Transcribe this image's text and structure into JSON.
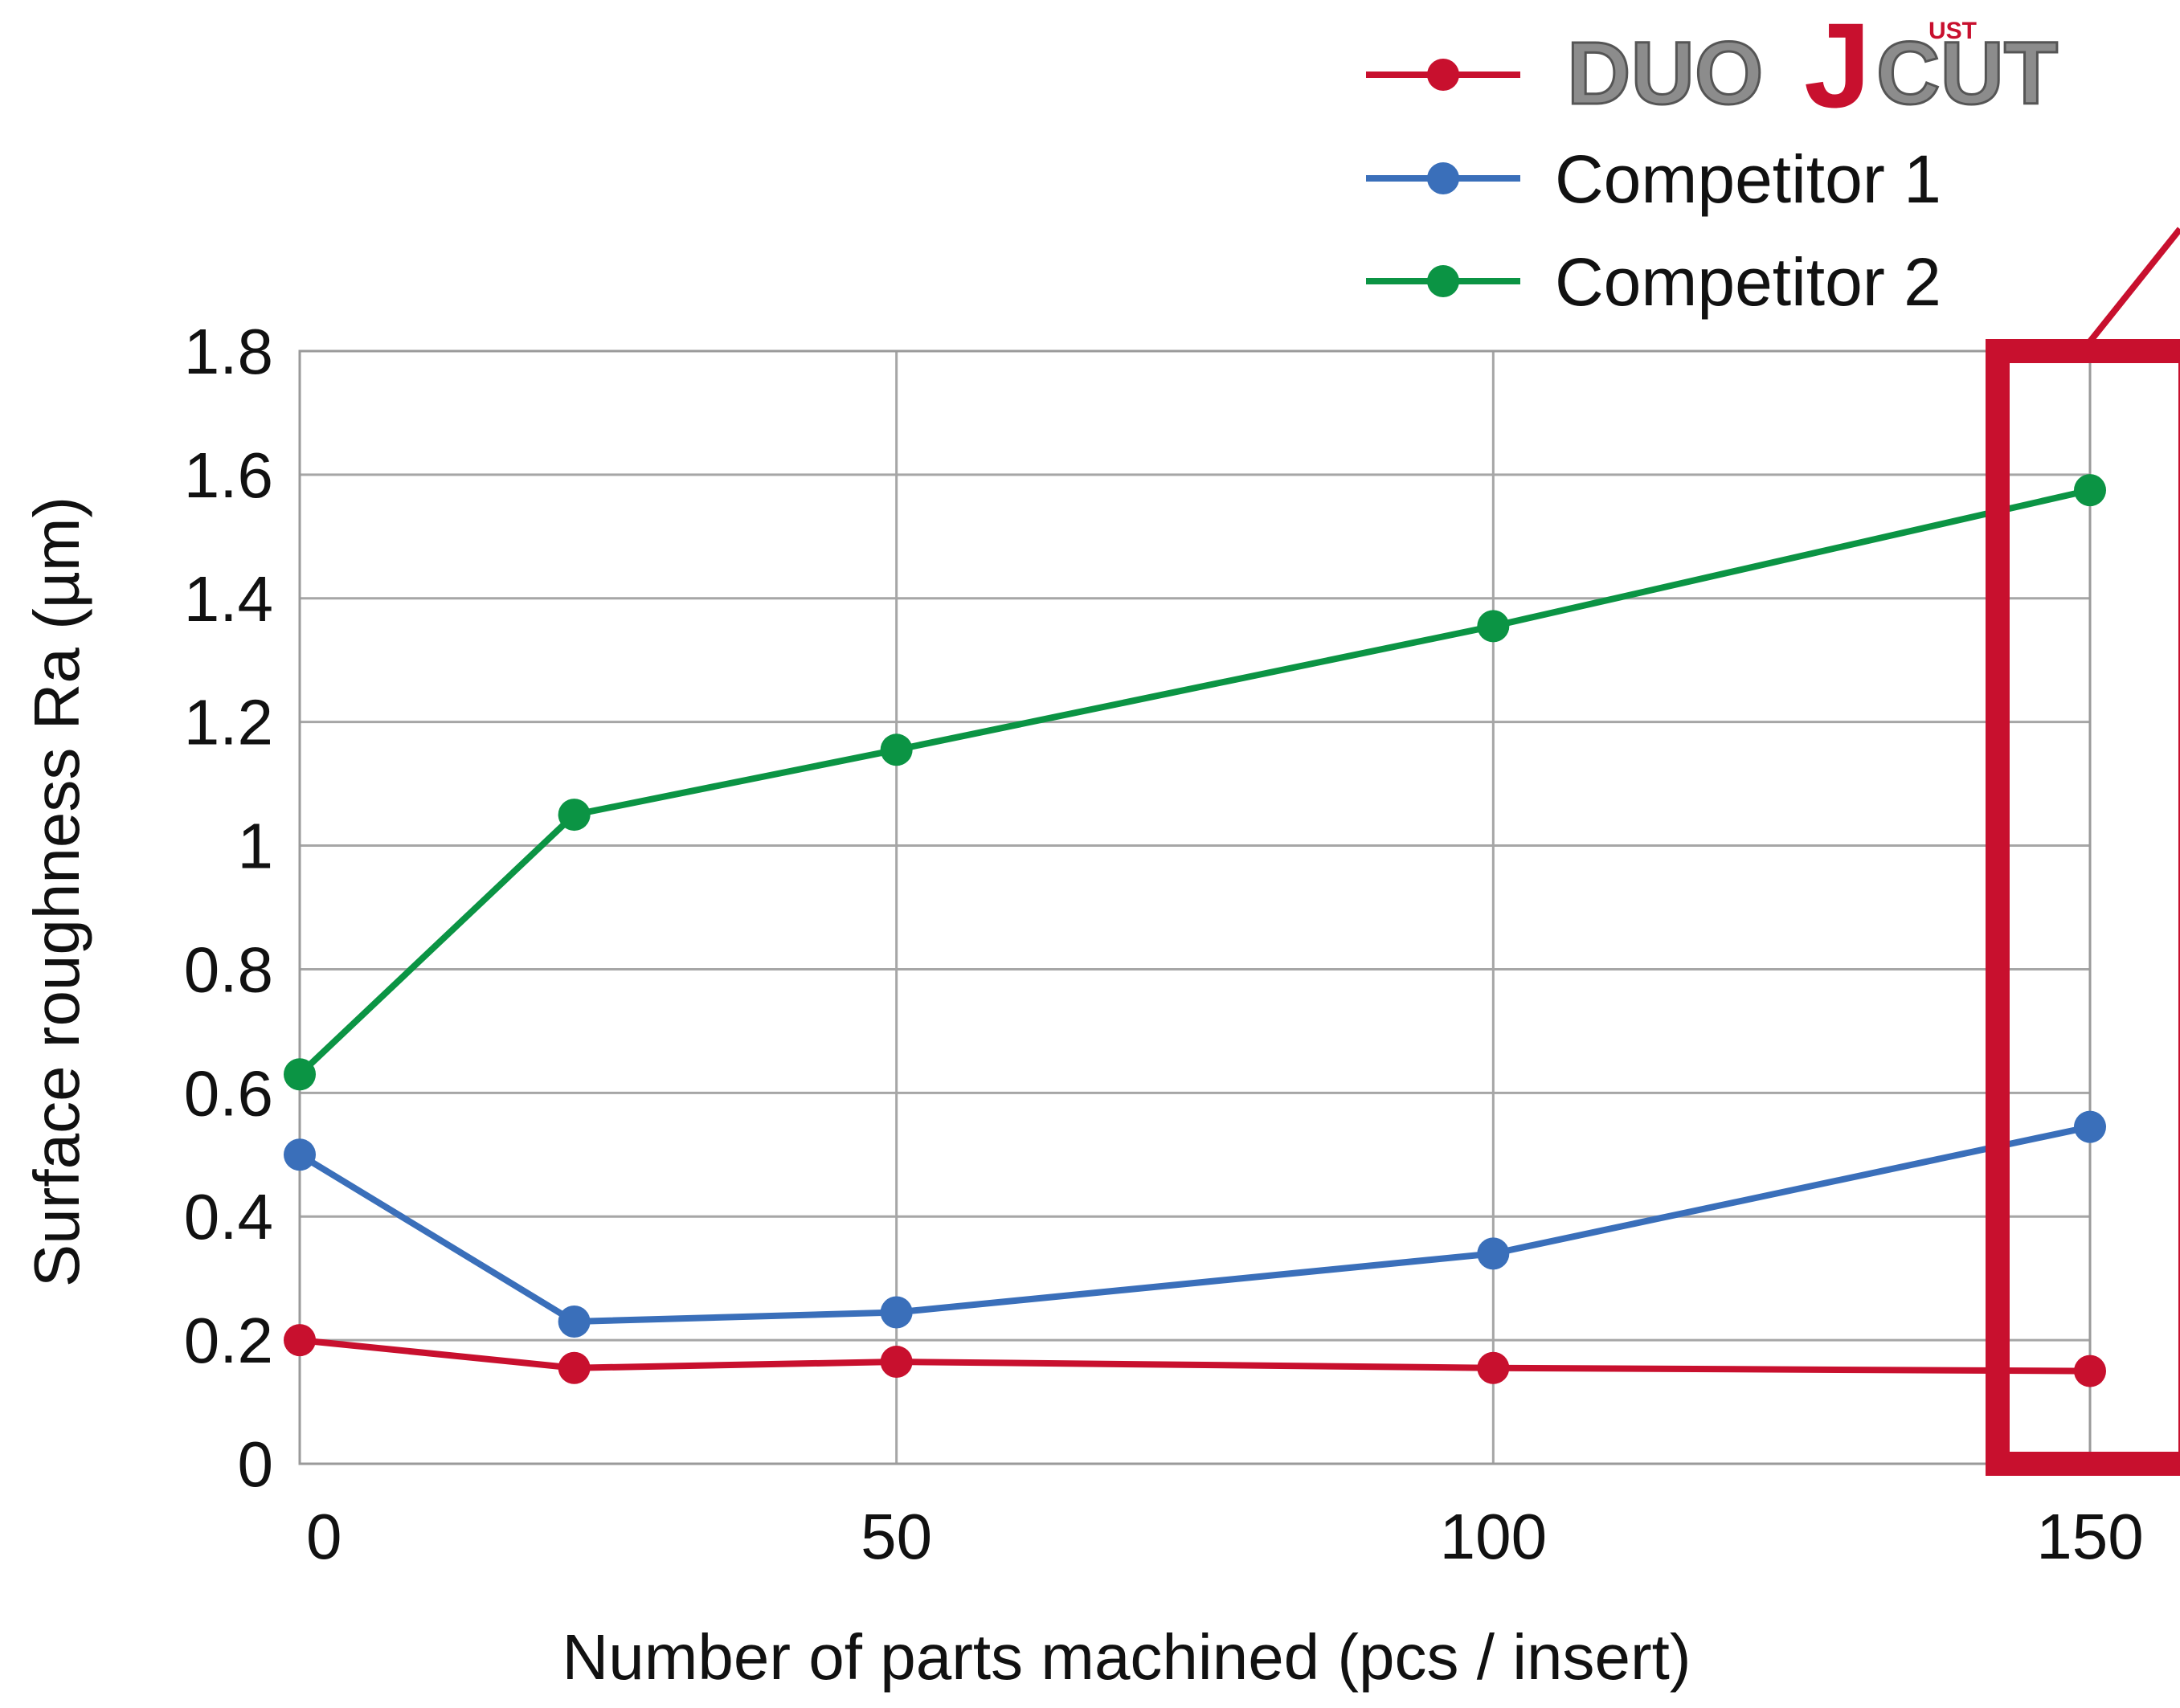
{
  "chart_data": {
    "type": "line",
    "title": "",
    "xlabel": "Number of parts machined (pcs / insert)",
    "ylabel": "Surface roughness Ra (µm)",
    "x": [
      0,
      23,
      50,
      100,
      150
    ],
    "x_tick_labels": [
      "0",
      "50",
      "100",
      "150"
    ],
    "x_ticks": [
      0,
      50,
      100,
      150
    ],
    "xlim": [
      0,
      150
    ],
    "ylim": [
      0,
      1.8
    ],
    "y_ticks": [
      0,
      0.2,
      0.4,
      0.6,
      0.8,
      1,
      1.2,
      1.4,
      1.6,
      1.8
    ],
    "y_tick_labels": [
      "0",
      "0.2",
      "0.4",
      "0.6",
      "0.8",
      "1",
      "1.2",
      "1.4",
      "1.6",
      "1.8"
    ],
    "grid": true,
    "legend_position": "top-right",
    "series": [
      {
        "name": "DUOJUSTCUT",
        "logo_parts": {
          "left": "DUO",
          "mark": "J",
          "sup": "UST",
          "right": "CUT"
        },
        "color": "#c8102e",
        "values": [
          0.2,
          0.155,
          0.165,
          0.155,
          0.15
        ]
      },
      {
        "name": "Competitor 1",
        "color": "#3a6fba",
        "values": [
          0.5,
          0.23,
          0.245,
          0.34,
          0.545
        ]
      },
      {
        "name": "Competitor 2",
        "color": "#0b9444",
        "values": [
          0.63,
          1.05,
          1.155,
          1.355,
          1.575
        ]
      }
    ],
    "highlight": {
      "x": 150,
      "color": "#c8102e"
    }
  }
}
